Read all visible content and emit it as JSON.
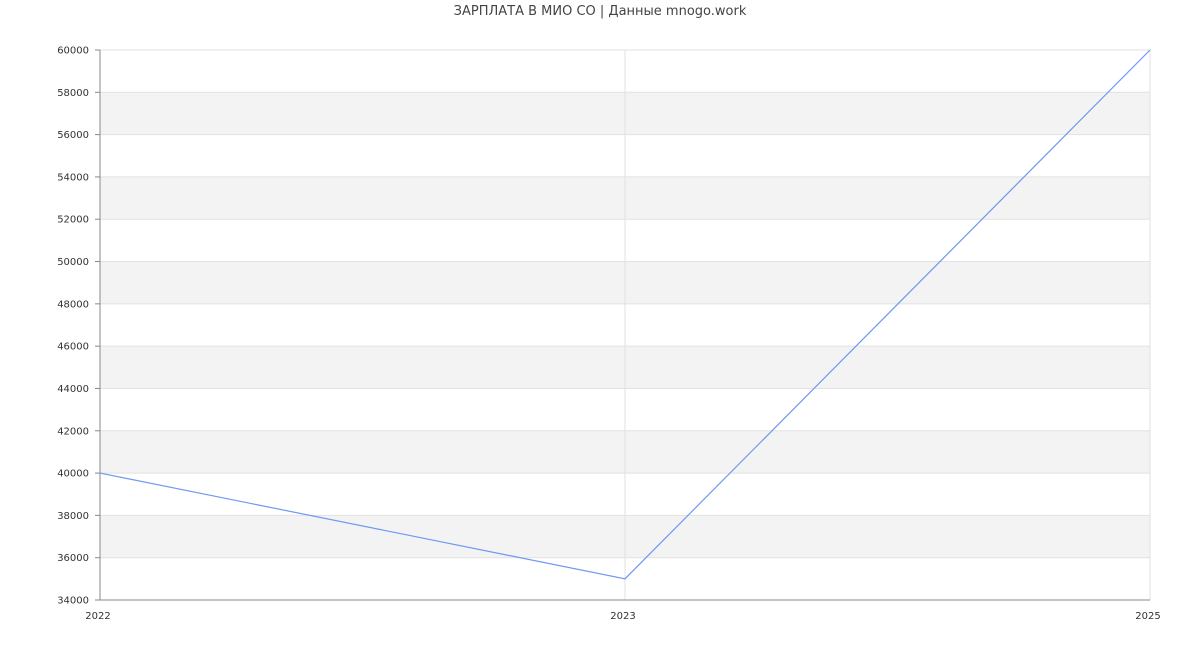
{
  "chart_data": {
    "type": "line",
    "title": "ЗАРПЛАТА В МИО СО | Данные mnogo.work",
    "categories": [
      "2022",
      "2023",
      "2025"
    ],
    "series": [
      {
        "values": [
          40000,
          35000,
          60000
        ]
      }
    ],
    "ylim": [
      34000,
      60000
    ],
    "ytick_step": 2000,
    "grid": true,
    "band_color": "#f3f3f3",
    "grid_color": "#e2e2e2",
    "line_color": "#6f98f0",
    "axis_color": "#888888"
  }
}
